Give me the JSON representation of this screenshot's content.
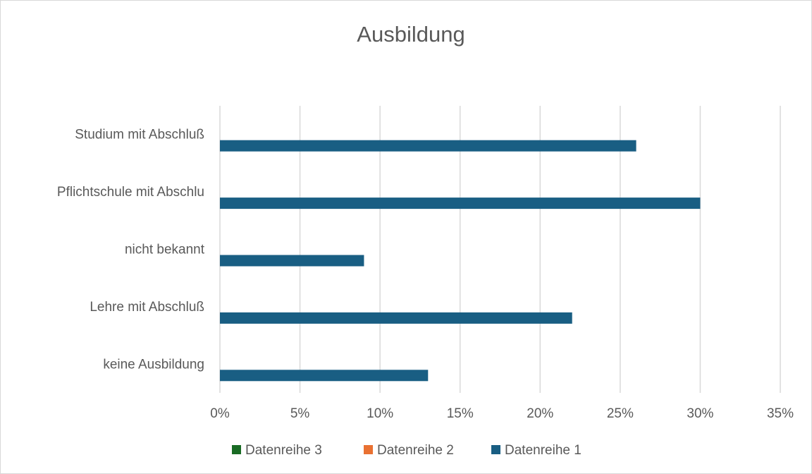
{
  "chart_data": {
    "type": "bar",
    "orientation": "horizontal",
    "title": "Ausbildung",
    "categories": [
      "Studium mit Abschluß",
      "Pflichtschule mit Abschlu",
      "nicht bekannt",
      "Lehre mit Abschluß",
      "keine Ausbildung"
    ],
    "series": [
      {
        "name": "Datenreihe 1",
        "color": "#195e83",
        "values": [
          26,
          30,
          9,
          22,
          13
        ]
      },
      {
        "name": "Datenreihe 2",
        "color": "#e97132",
        "values": [
          null,
          null,
          null,
          null,
          null
        ]
      },
      {
        "name": "Datenreihe 3",
        "color": "#196b24",
        "values": [
          null,
          null,
          null,
          null,
          null
        ]
      }
    ],
    "xlim": [
      0,
      35
    ],
    "xticks": [
      {
        "value": 0,
        "label": "0%"
      },
      {
        "value": 5,
        "label": "5%"
      },
      {
        "value": 10,
        "label": "10%"
      },
      {
        "value": 15,
        "label": "15%"
      },
      {
        "value": 20,
        "label": "20%"
      },
      {
        "value": 25,
        "label": "25%"
      },
      {
        "value": 30,
        "label": "30%"
      },
      {
        "value": 35,
        "label": "35%"
      }
    ],
    "grid": true,
    "legend": "bottom"
  }
}
